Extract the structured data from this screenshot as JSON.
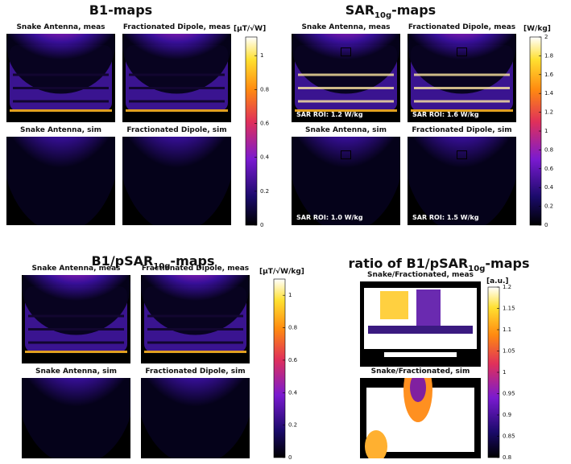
{
  "panels": [
    {
      "title": {
        "text": "B1-maps"
      },
      "unit": "[μT/√W]",
      "labels": [
        "Snake Antenna, meas",
        "Fractionated Dipole, meas",
        "Snake Antenna, sim",
        "Fractionated Dipole, sim"
      ],
      "colorbar": {
        "lim": [
          0,
          1.11
        ],
        "ticks": [
          0,
          0.2,
          0.4,
          0.6,
          0.8,
          1
        ]
      }
    },
    {
      "title": {
        "text": "SAR",
        "sub": "10g",
        "rest": "-maps"
      },
      "unit": "[W/kg]",
      "labels": [
        "Snake Antenna, meas",
        "Fractionated Dipole, meas",
        "Snake Antenna, sim",
        "Fractionated Dipole, sim"
      ],
      "roi_labels": [
        "SAR ROI: 1.2 W/kg",
        "SAR ROI: 1.6 W/kg",
        "SAR ROI: 1.0 W/kg",
        "SAR ROI: 1.5 W/kg"
      ],
      "colorbar": {
        "lim": [
          0,
          2
        ],
        "ticks": [
          0,
          0.2,
          0.4,
          0.6,
          0.8,
          1,
          1.2,
          1.4,
          1.6,
          1.8,
          2
        ]
      }
    },
    {
      "title": {
        "text": "B1/pSAR",
        "sub": "10g",
        "rest": "-maps"
      },
      "unit": "[μT/√W/kg]",
      "labels": [
        "Snake Antenna, meas",
        "Fractionated Dipole, meas",
        "Snake Antenna, sim",
        "Fractionated Dipole, sim"
      ],
      "colorbar": {
        "lim": [
          0,
          1.1
        ],
        "ticks": [
          0,
          0.2,
          0.4,
          0.6,
          0.8,
          1
        ]
      }
    },
    {
      "title": {
        "text": "ratio of B1/pSAR",
        "sub": "10g",
        "rest": "-maps"
      },
      "unit": "[a.u.]",
      "labels": [
        "Snake/Fractionated, meas",
        "Snake/Fractionated, sim"
      ],
      "colorbar": {
        "lim": [
          0.8,
          1.2
        ],
        "ticks": [
          0.8,
          0.85,
          0.9,
          0.95,
          1,
          1.05,
          1.1,
          1.15,
          1.2
        ]
      }
    }
  ]
}
